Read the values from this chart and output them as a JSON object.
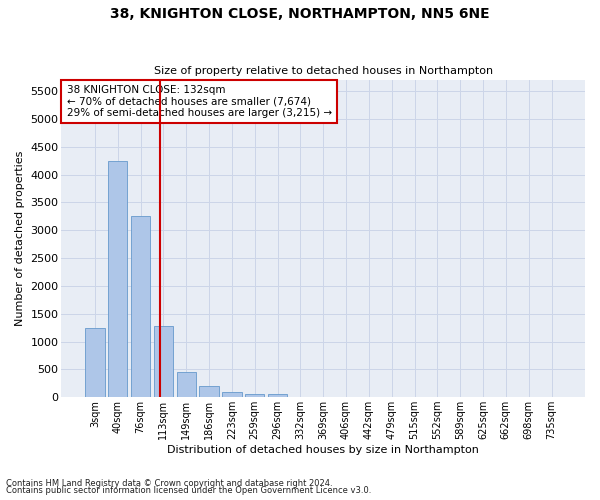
{
  "title1": "38, KNIGHTON CLOSE, NORTHAMPTON, NN5 6NE",
  "title2": "Size of property relative to detached houses in Northampton",
  "xlabel": "Distribution of detached houses by size in Northampton",
  "ylabel": "Number of detached properties",
  "footer1": "Contains HM Land Registry data © Crown copyright and database right 2024.",
  "footer2": "Contains public sector information licensed under the Open Government Licence v3.0.",
  "annotation_line1": "38 KNIGHTON CLOSE: 132sqm",
  "annotation_line2": "← 70% of detached houses are smaller (7,674)",
  "annotation_line3": "29% of semi-detached houses are larger (3,215) →",
  "bar_labels": [
    "3sqm",
    "40sqm",
    "76sqm",
    "113sqm",
    "149sqm",
    "186sqm",
    "223sqm",
    "259sqm",
    "296sqm",
    "332sqm",
    "369sqm",
    "406sqm",
    "442sqm",
    "479sqm",
    "515sqm",
    "552sqm",
    "589sqm",
    "625sqm",
    "662sqm",
    "698sqm",
    "735sqm"
  ],
  "bar_values": [
    1250,
    4250,
    3250,
    1280,
    460,
    200,
    100,
    55,
    55,
    0,
    0,
    0,
    0,
    0,
    0,
    0,
    0,
    0,
    0,
    0,
    0
  ],
  "bar_color": "#aec6e8",
  "bar_edge_color": "#6699cc",
  "vline_color": "#cc0000",
  "vline_x": 2.85,
  "ylim": [
    0,
    5700
  ],
  "yticks": [
    0,
    500,
    1000,
    1500,
    2000,
    2500,
    3000,
    3500,
    4000,
    4500,
    5000,
    5500
  ],
  "annotation_box_color": "#cc0000",
  "grid_color": "#ccd5e8",
  "bg_color": "#e8edf5"
}
